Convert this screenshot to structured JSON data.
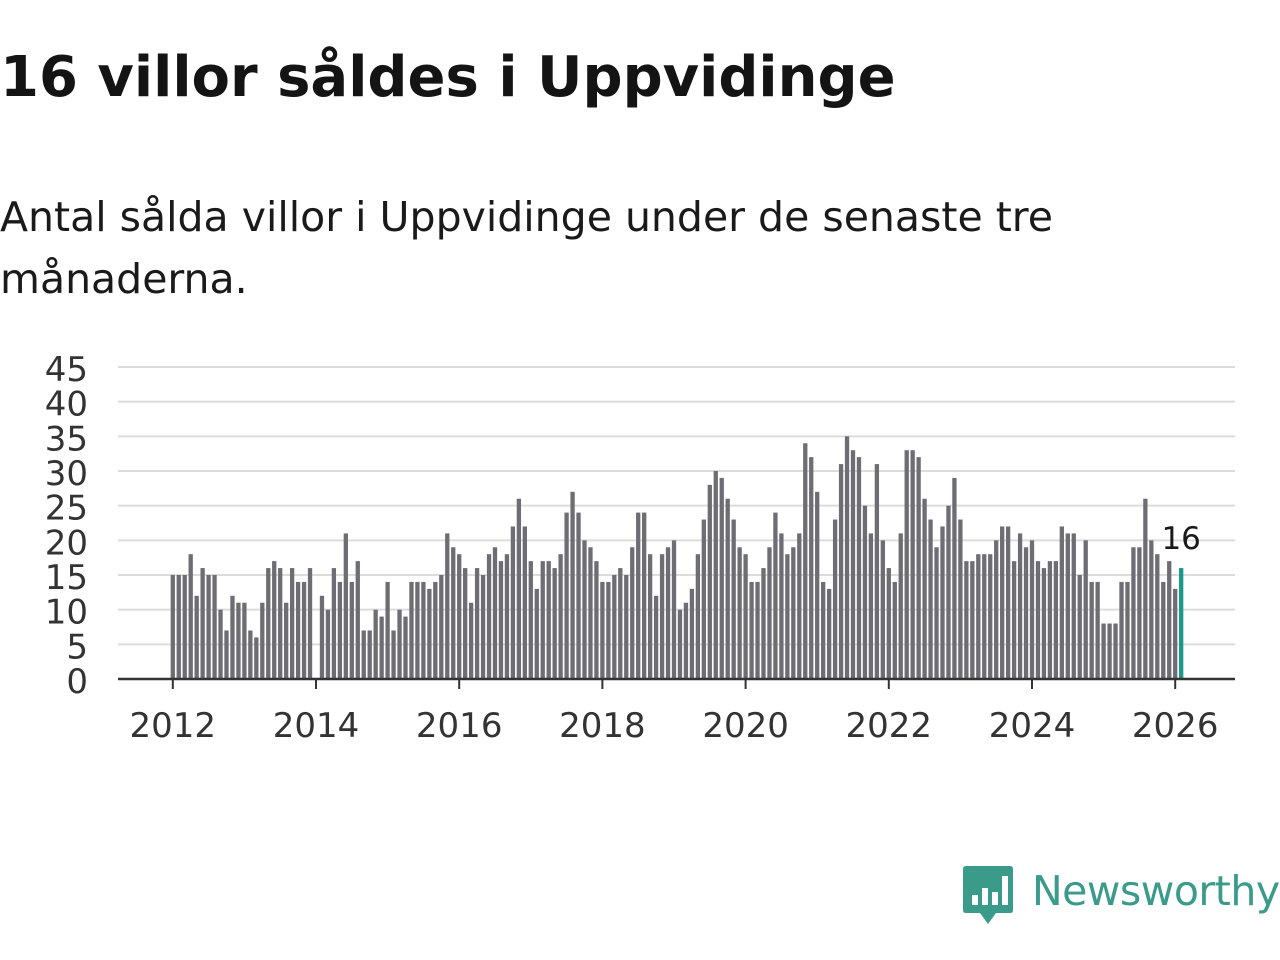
{
  "title": "16 villor såldes i Uppvidinge",
  "subtitle": "Antal sålda villor i Uppvidinge under de senaste tre månaderna.",
  "brand": {
    "name": "Newsworthy",
    "color": "#3a9b8a"
  },
  "chart_data": {
    "type": "bar",
    "title": "16 villor såldes i Uppvidinge",
    "subtitle": "Antal sålda villor i Uppvidinge under de senaste tre månaderna.",
    "xlabel": "",
    "ylabel": "",
    "ylim": [
      0,
      45
    ],
    "yticks": [
      "0",
      "5",
      "10",
      "15",
      "20",
      "25",
      "30",
      "35",
      "40",
      "45"
    ],
    "xticks": [
      "2012",
      "2014",
      "2016",
      "2018",
      "2020",
      "2022",
      "2024",
      "2026"
    ],
    "x_start": "2012-01",
    "x_end": "2026-01",
    "bar_color": "#6e6d74",
    "highlight_color": "#1a9a8a",
    "grid": true,
    "highlight_label": "16",
    "values": [
      15,
      15,
      15,
      18,
      12,
      16,
      15,
      15,
      10,
      7,
      12,
      11,
      11,
      7,
      6,
      11,
      16,
      17,
      16,
      11,
      16,
      14,
      14,
      16,
      null,
      12,
      10,
      16,
      14,
      21,
      14,
      17,
      7,
      7,
      10,
      9,
      14,
      7,
      10,
      9,
      14,
      14,
      14,
      13,
      14,
      15,
      21,
      19,
      18,
      16,
      11,
      16,
      15,
      18,
      19,
      17,
      18,
      22,
      26,
      22,
      17,
      13,
      17,
      17,
      16,
      18,
      24,
      27,
      24,
      20,
      19,
      17,
      14,
      14,
      15,
      16,
      15,
      19,
      24,
      24,
      18,
      12,
      18,
      19,
      20,
      10,
      11,
      13,
      18,
      23,
      28,
      30,
      29,
      26,
      23,
      19,
      18,
      14,
      14,
      16,
      19,
      24,
      21,
      18,
      19,
      21,
      34,
      32,
      27,
      14,
      13,
      23,
      31,
      35,
      33,
      32,
      25,
      21,
      31,
      20,
      16,
      14,
      21,
      33,
      33,
      32,
      26,
      23,
      19,
      22,
      25,
      29,
      23,
      17,
      17,
      18,
      18,
      18,
      20,
      22,
      22,
      17,
      21,
      19,
      20,
      17,
      16,
      17,
      17,
      22,
      21,
      21,
      15,
      20,
      14,
      14,
      8,
      8,
      8,
      14,
      14,
      19,
      19,
      26,
      20,
      18,
      14,
      17,
      13,
      16
    ]
  }
}
